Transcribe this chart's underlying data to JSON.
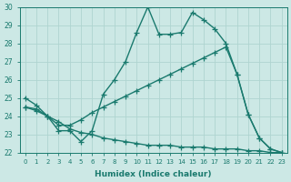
{
  "xlabel": "Humidex (Indice chaleur)",
  "bg_color": "#cce8e5",
  "line_color": "#1a7a6e",
  "grid_color": "#afd4d0",
  "xlim": [
    -0.5,
    23.5
  ],
  "ylim": [
    22,
    30
  ],
  "xticks": [
    0,
    1,
    2,
    3,
    4,
    5,
    6,
    7,
    8,
    9,
    10,
    11,
    12,
    13,
    14,
    15,
    16,
    17,
    18,
    19,
    20,
    21,
    22,
    23
  ],
  "yticks": [
    22,
    23,
    24,
    25,
    26,
    27,
    28,
    29,
    30
  ],
  "line1_x": [
    0,
    1,
    2,
    3,
    4,
    5,
    6,
    7,
    8,
    9,
    10,
    11,
    12,
    13,
    14,
    15,
    16,
    17,
    18,
    19,
    20,
    21,
    22,
    23
  ],
  "line1_y": [
    25.0,
    24.6,
    24.0,
    23.2,
    23.2,
    22.6,
    23.2,
    25.2,
    26.0,
    27.0,
    28.6,
    30.0,
    28.5,
    28.5,
    28.6,
    29.7,
    29.3,
    28.8,
    28.0,
    26.3,
    24.1,
    22.8,
    22.2,
    22.0
  ],
  "line2_x": [
    0,
    1,
    2,
    3,
    4,
    5,
    6,
    7,
    8,
    9,
    10,
    11,
    12,
    13,
    14,
    15,
    16,
    17,
    18,
    19,
    20,
    21,
    22,
    23
  ],
  "line2_y": [
    24.5,
    24.4,
    24.0,
    23.5,
    23.5,
    23.8,
    24.2,
    24.5,
    24.8,
    25.1,
    25.4,
    25.7,
    26.0,
    26.3,
    26.6,
    26.9,
    27.2,
    27.5,
    27.8,
    26.3,
    24.1,
    22.8,
    22.2,
    22.0
  ],
  "line3_x": [
    0,
    1,
    2,
    3,
    4,
    5,
    6,
    7,
    8,
    9,
    10,
    11,
    12,
    13,
    14,
    15,
    16,
    17,
    18,
    19,
    20,
    21,
    22,
    23
  ],
  "line3_y": [
    24.5,
    24.3,
    24.0,
    23.7,
    23.3,
    23.1,
    23.0,
    22.8,
    22.7,
    22.6,
    22.5,
    22.4,
    22.4,
    22.4,
    22.3,
    22.3,
    22.3,
    22.2,
    22.2,
    22.2,
    22.1,
    22.1,
    22.0,
    22.0
  ],
  "markersize": 4,
  "linewidth": 1.0
}
